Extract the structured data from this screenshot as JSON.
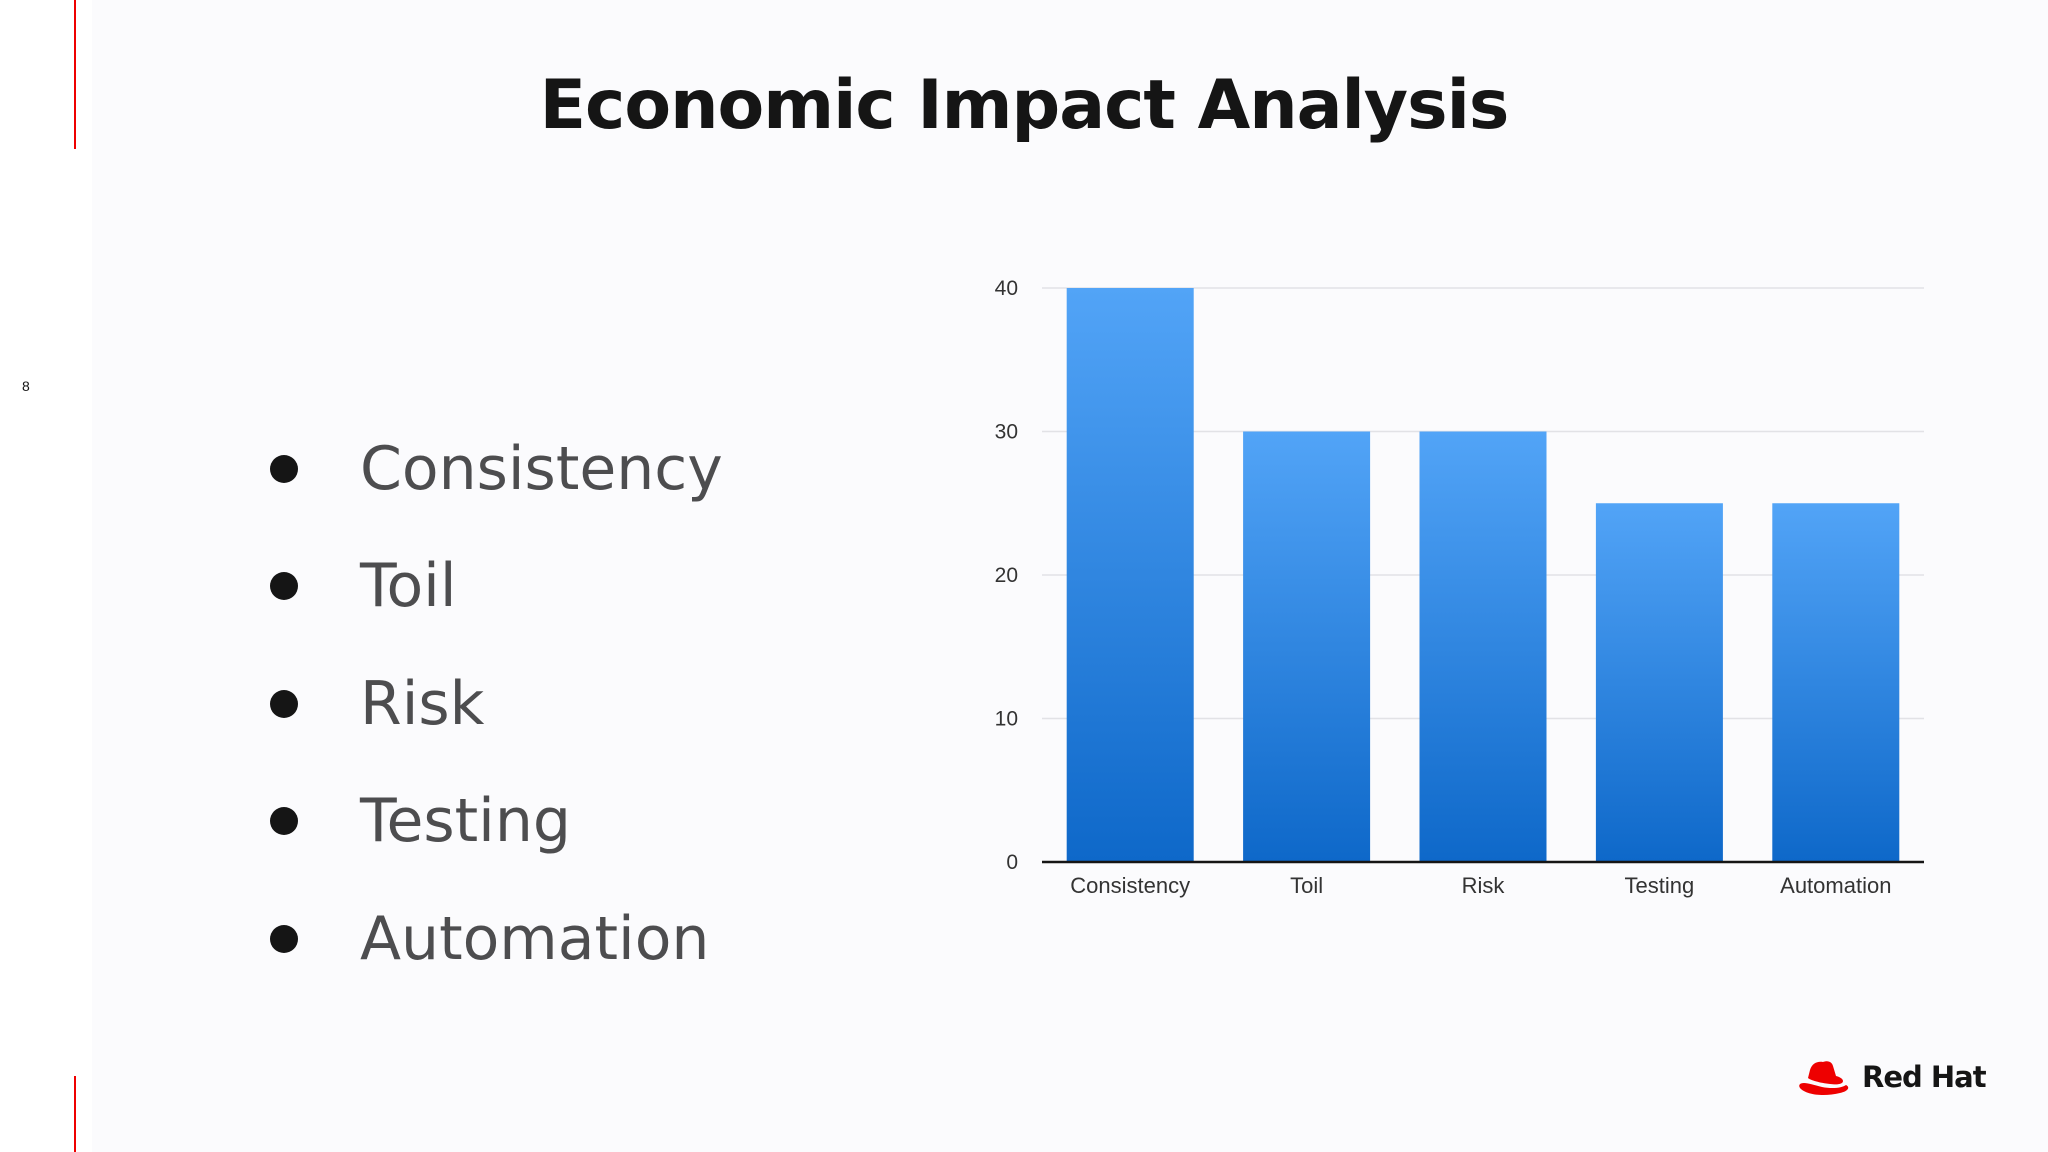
{
  "slide": {
    "title": "Economic Impact Analysis",
    "page_number": "8",
    "bullets": [
      "Consistency",
      "Toil",
      "Risk",
      "Testing",
      "Automation"
    ],
    "logo_text": "Red Hat"
  },
  "colors": {
    "accent": "#ee0000",
    "bar_top": "#52a4f7",
    "bar_bottom": "#0e68c9",
    "title": "#151515",
    "bullet_text": "#4d4d4f"
  },
  "chart_data": {
    "type": "bar",
    "categories": [
      "Consistency",
      "Toil",
      "Risk",
      "Testing",
      "Automation"
    ],
    "values": [
      40,
      30,
      30,
      25,
      25
    ],
    "yticks": [
      0,
      10,
      20,
      30,
      40
    ],
    "ylim": [
      0,
      40
    ],
    "title": "",
    "xlabel": "",
    "ylabel": "",
    "grid": true,
    "legend": "none"
  }
}
